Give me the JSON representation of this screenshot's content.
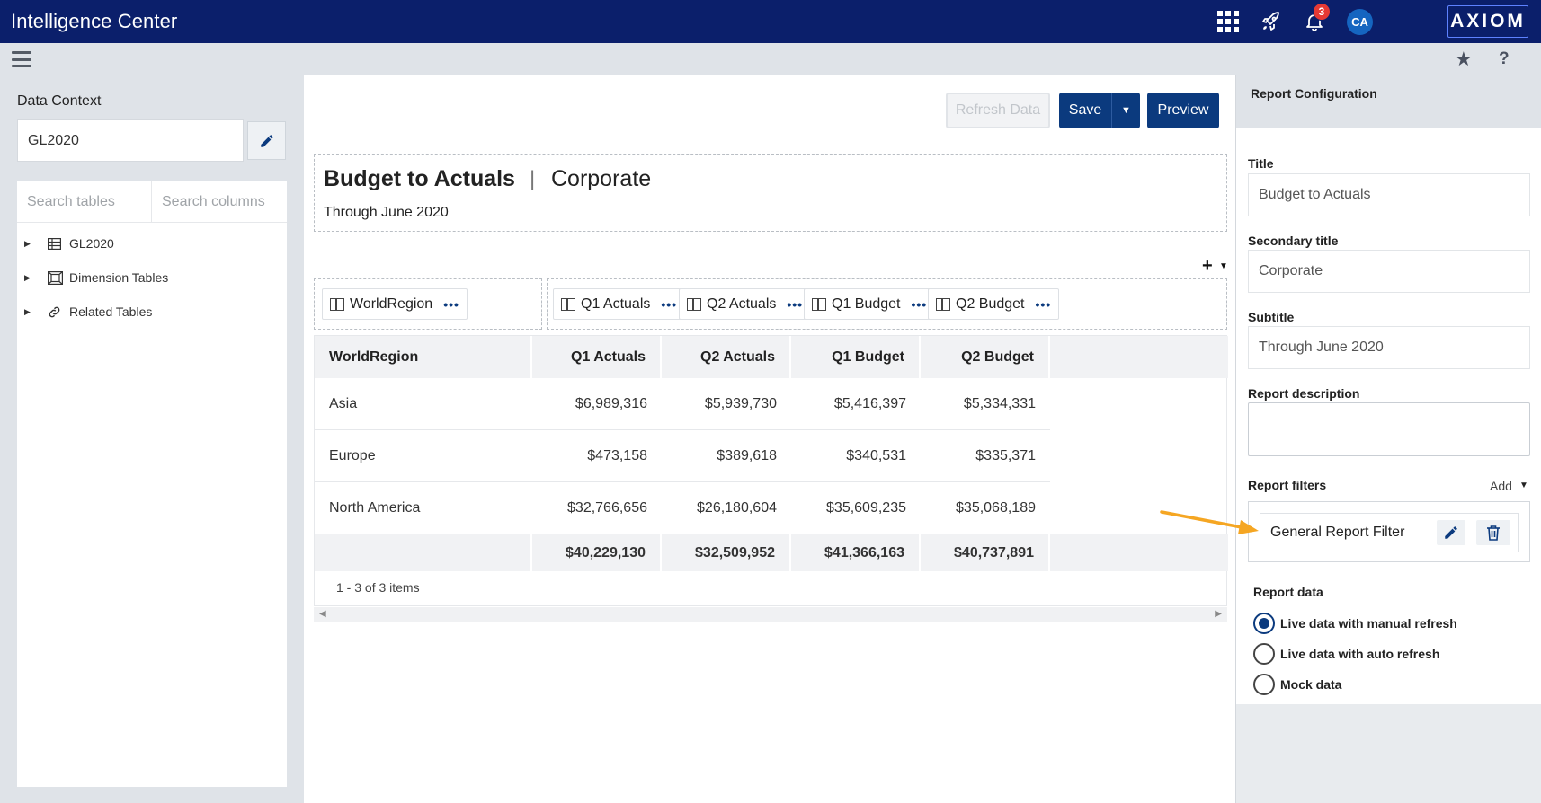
{
  "app": {
    "title": "Intelligence Center",
    "notification_count": "3",
    "user_initials": "CA",
    "logo_text": "AXIOM"
  },
  "toolbar": {
    "refresh_label": "Refresh Data",
    "save_label": "Save",
    "preview_label": "Preview"
  },
  "data_context": {
    "label": "Data Context",
    "value": "GL2020",
    "search_tables_placeholder": "Search tables",
    "search_columns_placeholder": "Search columns",
    "tree": [
      {
        "label": "GL2020",
        "icon": "table-icon"
      },
      {
        "label": "Dimension Tables",
        "icon": "dimension-icon"
      },
      {
        "label": "Related Tables",
        "icon": "link-icon"
      }
    ]
  },
  "report": {
    "title": "Budget to Actuals",
    "title_separator": "|",
    "secondary_title": "Corporate",
    "subtitle": "Through June 2020",
    "row_groups": [
      "WorldRegion"
    ],
    "column_groups": [
      "Q1 Actuals",
      "Q2 Actuals",
      "Q1 Budget",
      "Q2 Budget"
    ],
    "chip_menu": "•••",
    "add_symbol": "+"
  },
  "table": {
    "headers": [
      "WorldRegion",
      "Q1 Actuals",
      "Q2 Actuals",
      "Q1 Budget",
      "Q2 Budget"
    ],
    "rows": [
      [
        "Asia",
        "$6,989,316",
        "$5,939,730",
        "$5,416,397",
        "$5,334,331"
      ],
      [
        "Europe",
        "$473,158",
        "$389,618",
        "$340,531",
        "$335,371"
      ],
      [
        "North America",
        "$32,766,656",
        "$26,180,604",
        "$35,609,235",
        "$35,068,189"
      ]
    ],
    "totals": [
      "",
      "$40,229,130",
      "$32,509,952",
      "$41,366,163",
      "$40,737,891"
    ],
    "pager": "1 - 3 of 3 items"
  },
  "config": {
    "header": "Report Configuration",
    "title_label": "Title",
    "title_value": "Budget to Actuals",
    "secondary_label": "Secondary title",
    "secondary_value": "Corporate",
    "subtitle_label": "Subtitle",
    "subtitle_value": "Through June 2020",
    "description_label": "Report description",
    "filters_label": "Report filters",
    "add_label": "Add",
    "filter_name": "General Report Filter",
    "report_data_label": "Report data",
    "options": [
      {
        "label": "Live data with manual refresh",
        "selected": true
      },
      {
        "label": "Live data with auto refresh",
        "selected": false
      },
      {
        "label": "Mock data",
        "selected": false
      }
    ]
  },
  "colors": {
    "topbar": "#0b1f6b",
    "primary": "#0b3a7e",
    "badge": "#e53935",
    "annotation_arrow": "#f5a623"
  }
}
